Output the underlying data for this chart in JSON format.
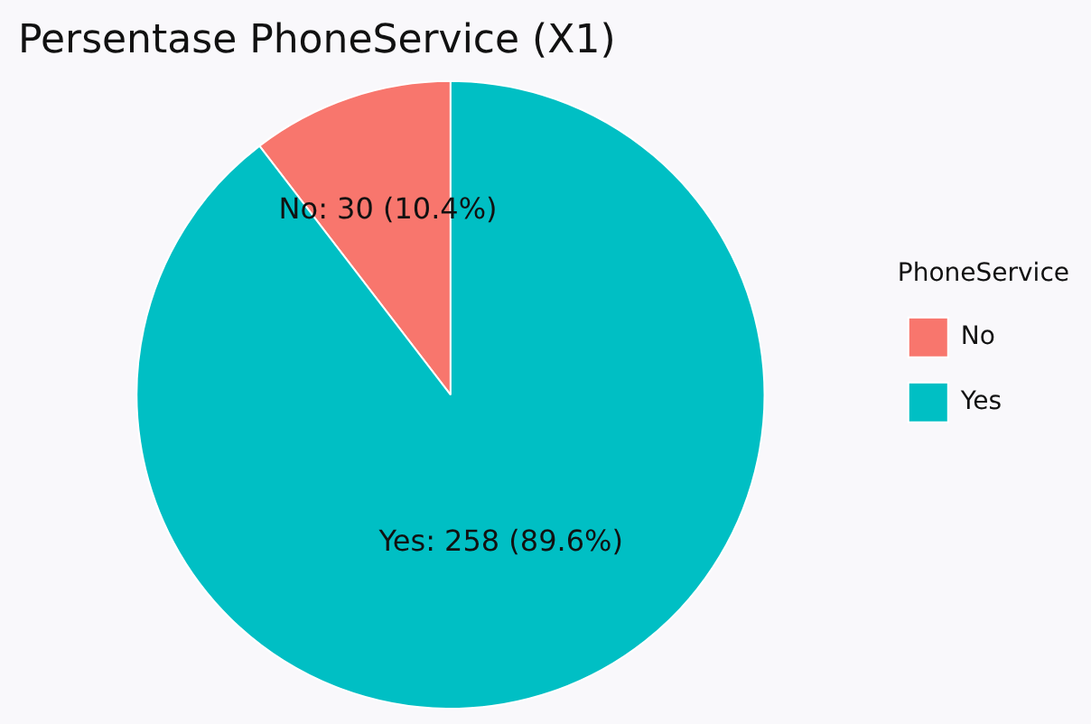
{
  "chart_data": {
    "type": "pie",
    "title": "Persentase PhoneService (X1)",
    "legend_title": "PhoneService",
    "legend": "right",
    "categories": [
      "No",
      "Yes"
    ],
    "values": [
      30,
      258
    ],
    "colors": [
      "#f8766d",
      "#00bfc4"
    ],
    "value_labels": [
      "No: 30 (10.4%)",
      "Yes: 258 (89.6%)"
    ]
  }
}
